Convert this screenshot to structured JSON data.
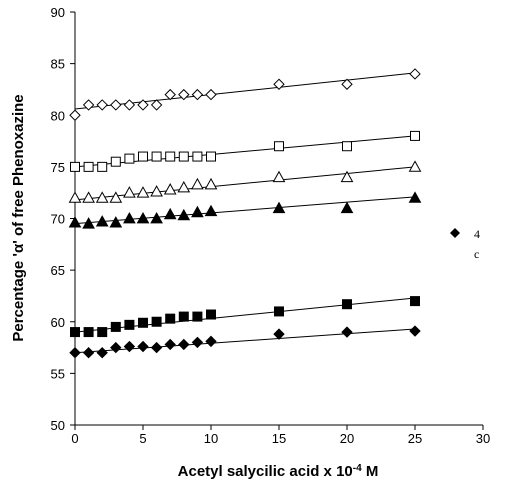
{
  "chart_data": {
    "type": "scatter",
    "xlabel": "Acetyl salycilic acid x 10",
    "xlabel_exponent": "-4",
    "xlabel_unit": " M",
    "ylabel": "Percentage 'α' of free Phenoxazine",
    "xlim": [
      0,
      30
    ],
    "ylim": [
      50,
      90
    ],
    "x_ticks": [
      "0",
      "5",
      "10",
      "15",
      "20",
      "25",
      "30"
    ],
    "y_ticks": [
      "50",
      "55",
      "60",
      "65",
      "70",
      "75",
      "80",
      "85",
      "90"
    ],
    "grid": false,
    "legend": {
      "placement": "right",
      "entries": [
        "4",
        "c"
      ]
    },
    "x": [
      0,
      1,
      2,
      3,
      4,
      5,
      6,
      7,
      8,
      9,
      10,
      15,
      20,
      25
    ],
    "series": [
      {
        "marker": "open-diamond",
        "values": [
          80.0,
          81.0,
          81.0,
          81.0,
          81.0,
          81.0,
          81.0,
          82.0,
          82.0,
          82.0,
          82.0,
          83.0,
          83.0,
          84.0
        ],
        "trendline": [
          80.6,
          84.1
        ]
      },
      {
        "marker": "open-square",
        "values": [
          75.0,
          75.0,
          75.0,
          75.5,
          75.8,
          76.0,
          76.0,
          76.0,
          76.0,
          76.0,
          76.0,
          77.0,
          77.0,
          78.0
        ],
        "trendline": [
          75.0,
          78.0
        ]
      },
      {
        "marker": "open-triangle",
        "values": [
          72.0,
          72.0,
          72.0,
          72.0,
          72.5,
          72.5,
          72.6,
          72.8,
          73.0,
          73.3,
          73.3,
          74.0,
          74.0,
          75.0
        ],
        "trendline": [
          71.8,
          75.0
        ]
      },
      {
        "marker": "filled-triangle",
        "values": [
          69.6,
          69.5,
          69.7,
          69.6,
          70.0,
          70.0,
          70.0,
          70.4,
          70.3,
          70.6,
          70.7,
          71.0,
          71.0,
          72.0
        ],
        "trendline": [
          69.5,
          72.1
        ]
      },
      {
        "marker": "filled-square",
        "values": [
          59.0,
          59.0,
          59.0,
          59.5,
          59.7,
          59.9,
          60.0,
          60.3,
          60.5,
          60.5,
          60.7,
          61.0,
          61.7,
          62.0
        ],
        "trendline": [
          59.0,
          62.3
        ]
      },
      {
        "marker": "filled-diamond",
        "values": [
          57.0,
          57.0,
          57.0,
          57.5,
          57.6,
          57.6,
          57.5,
          57.8,
          57.8,
          58.0,
          58.1,
          58.8,
          59.0,
          59.1
        ],
        "trendline": [
          57.0,
          59.3
        ]
      }
    ]
  }
}
